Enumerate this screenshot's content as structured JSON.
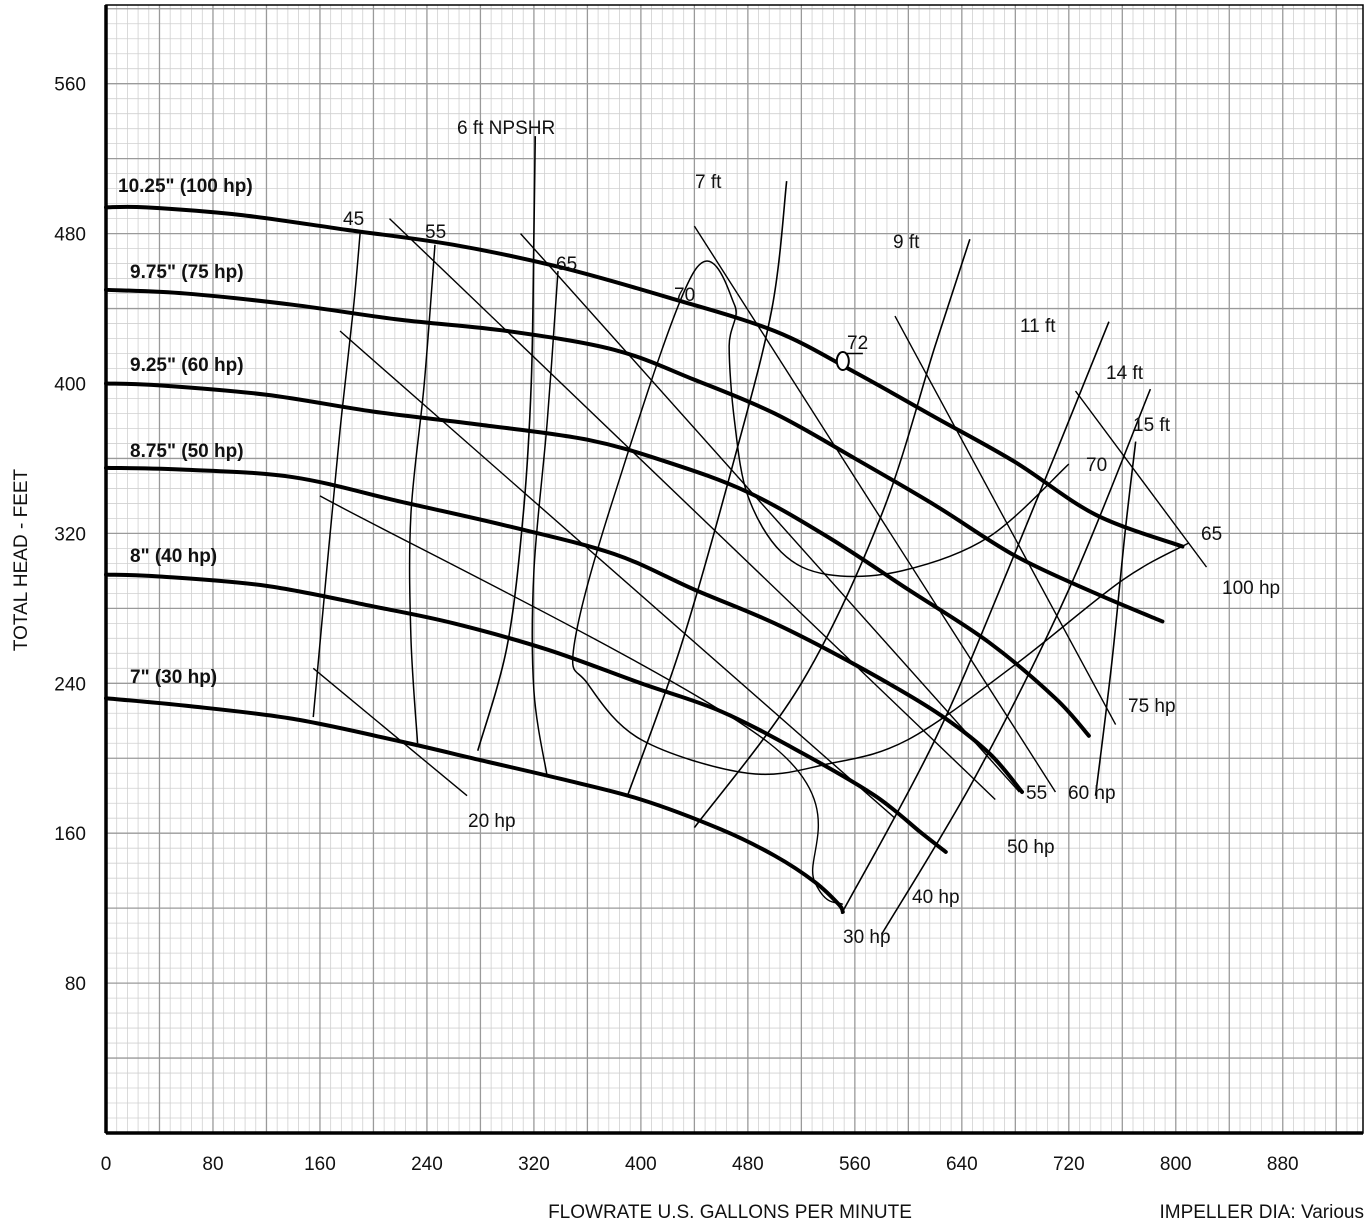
{
  "chart_data": {
    "type": "line",
    "title": "",
    "xlabel": "FLOWRATE U.S. GALLONS PER MINUTE",
    "ylabel": "TOTAL HEAD - FEET",
    "note": "IMPELLER DIA: Various",
    "xlim": [
      0,
      940
    ],
    "ylim": [
      0,
      602
    ],
    "x_ticks": [
      0,
      80,
      160,
      240,
      320,
      400,
      480,
      560,
      640,
      720,
      800,
      880
    ],
    "y_ticks": [
      80,
      160,
      240,
      320,
      400,
      480,
      560
    ],
    "grid": true,
    "colors": {
      "major_grid": "#9a9a9a",
      "minor_grid": "#d0d0d0",
      "ink": "#000000"
    },
    "series": [
      {
        "name": "10.25\" (100 hp)",
        "points": [
          [
            0,
            494
          ],
          [
            30,
            494
          ],
          [
            100,
            490
          ],
          [
            180,
            482
          ],
          [
            260,
            474
          ],
          [
            340,
            462
          ],
          [
            420,
            446
          ],
          [
            500,
            428
          ],
          [
            560,
            406
          ],
          [
            620,
            382
          ],
          [
            680,
            358
          ],
          [
            740,
            330
          ],
          [
            805,
            313
          ]
        ]
      },
      {
        "name": "9.75\" (75 hp)",
        "points": [
          [
            0,
            450
          ],
          [
            60,
            448
          ],
          [
            140,
            442
          ],
          [
            220,
            434
          ],
          [
            300,
            428
          ],
          [
            380,
            418
          ],
          [
            440,
            402
          ],
          [
            500,
            384
          ],
          [
            560,
            360
          ],
          [
            620,
            335
          ],
          [
            680,
            308
          ],
          [
            740,
            288
          ],
          [
            790,
            273
          ]
        ]
      },
      {
        "name": "9.25\" (60 hp)",
        "points": [
          [
            0,
            400
          ],
          [
            40,
            399
          ],
          [
            120,
            394
          ],
          [
            200,
            385
          ],
          [
            280,
            378
          ],
          [
            360,
            370
          ],
          [
            420,
            358
          ],
          [
            480,
            342
          ],
          [
            540,
            318
          ],
          [
            600,
            290
          ],
          [
            660,
            262
          ],
          [
            710,
            232
          ],
          [
            735,
            212
          ]
        ]
      },
      {
        "name": "8.75\" (50 hp)",
        "points": [
          [
            0,
            355
          ],
          [
            60,
            354
          ],
          [
            140,
            350
          ],
          [
            220,
            337
          ],
          [
            300,
            324
          ],
          [
            380,
            309
          ],
          [
            440,
            290
          ],
          [
            500,
            272
          ],
          [
            560,
            250
          ],
          [
            620,
            225
          ],
          [
            660,
            203
          ],
          [
            685,
            182
          ]
        ]
      },
      {
        "name": "8\" (40 hp)",
        "points": [
          [
            0,
            298
          ],
          [
            40,
            297
          ],
          [
            120,
            292
          ],
          [
            200,
            281
          ],
          [
            260,
            272
          ],
          [
            330,
            258
          ],
          [
            400,
            240
          ],
          [
            460,
            225
          ],
          [
            520,
            203
          ],
          [
            575,
            180
          ],
          [
            610,
            160
          ],
          [
            628,
            150
          ]
        ]
      },
      {
        "name": "7\" (30 hp)",
        "points": [
          [
            0,
            232
          ],
          [
            60,
            228
          ],
          [
            140,
            221
          ],
          [
            220,
            209
          ],
          [
            280,
            199
          ],
          [
            340,
            189
          ],
          [
            400,
            178
          ],
          [
            460,
            162
          ],
          [
            500,
            148
          ],
          [
            530,
            134
          ],
          [
            548,
            122
          ],
          [
            551,
            118
          ]
        ]
      }
    ],
    "npshr": [
      {
        "label": "6 ft NPSHR",
        "points": [
          [
            278,
            204
          ],
          [
            300,
            260
          ],
          [
            312,
            330
          ],
          [
            318,
            400
          ],
          [
            320,
            480
          ],
          [
            321,
            532
          ]
        ]
      },
      {
        "label": "7 ft",
        "points": [
          [
            390,
            180
          ],
          [
            430,
            260
          ],
          [
            470,
            360
          ],
          [
            498,
            440
          ],
          [
            509,
            508
          ]
        ]
      },
      {
        "label": "9 ft",
        "points": [
          [
            440,
            163
          ],
          [
            520,
            240
          ],
          [
            580,
            330
          ],
          [
            620,
            420
          ],
          [
            646,
            477
          ]
        ]
      },
      {
        "label": "11 ft",
        "points": [
          [
            550,
            117
          ],
          [
            620,
            210
          ],
          [
            680,
            310
          ],
          [
            750,
            433
          ]
        ]
      },
      {
        "label": "14 ft",
        "points": [
          [
            580,
            106
          ],
          [
            650,
            190
          ],
          [
            720,
            290
          ],
          [
            781,
            397
          ]
        ]
      },
      {
        "label": "15 ft",
        "points": [
          [
            740,
            180
          ],
          [
            752,
            250
          ],
          [
            762,
            320
          ],
          [
            770,
            369
          ]
        ]
      }
    ],
    "power": [
      {
        "label": "20 hp",
        "points": [
          [
            155,
            248
          ],
          [
            270,
            180
          ]
        ]
      },
      {
        "label": "30 hp",
        "points": [
          [
            160,
            340
          ],
          [
            496,
            208
          ],
          [
            530,
            134
          ],
          [
            551,
            122
          ]
        ]
      },
      {
        "label": "40 hp",
        "points": [
          [
            175,
            428
          ],
          [
            590,
            168
          ]
        ]
      },
      {
        "label": "50 hp",
        "points": [
          [
            212,
            488
          ],
          [
            665,
            178
          ]
        ]
      },
      {
        "label": "55",
        "points": [
          [
            310,
            480
          ],
          [
            683,
            182
          ]
        ]
      },
      {
        "label": "60 hp",
        "points": [
          [
            440,
            484
          ],
          [
            710,
            182
          ]
        ]
      },
      {
        "label": "75 hp",
        "points": [
          [
            590,
            436
          ],
          [
            755,
            218
          ]
        ]
      },
      {
        "label": "100 hp",
        "points": [
          [
            725,
            396
          ],
          [
            823,
            302
          ]
        ]
      }
    ],
    "efficiency": [
      {
        "label": "45",
        "points": [
          [
            155,
            222
          ],
          [
            165,
            300
          ],
          [
            175,
            375
          ],
          [
            185,
            440
          ],
          [
            190,
            480
          ]
        ]
      },
      {
        "label": "55",
        "points": [
          [
            233,
            208
          ],
          [
            228,
            265
          ],
          [
            228,
            330
          ],
          [
            238,
            400
          ],
          [
            246,
            474
          ]
        ]
      },
      {
        "label": "65",
        "points": [
          [
            330,
            190
          ],
          [
            320,
            236
          ],
          [
            320,
            300
          ],
          [
            330,
            380
          ],
          [
            338,
            460
          ]
        ]
      },
      {
        "label": "70",
        "points": [
          [
            720,
            357
          ],
          [
            660,
            318
          ],
          [
            595,
            300
          ],
          [
            540,
            298
          ],
          [
            505,
            310
          ],
          [
            480,
            340
          ],
          [
            470,
            380
          ],
          [
            466,
            420
          ],
          [
            470,
            442
          ],
          [
            440,
            460
          ],
          [
            380,
            340
          ],
          [
            350,
            260
          ],
          [
            360,
            240
          ],
          [
            400,
            210
          ],
          [
            480,
            192
          ],
          [
            540,
            197
          ],
          [
            600,
            210
          ],
          [
            680,
            250
          ],
          [
            760,
            295
          ],
          [
            810,
            315
          ]
        ]
      },
      {
        "label": "72",
        "points": [
          [
            566,
            416
          ],
          [
            548,
            416
          ]
        ]
      }
    ],
    "efficiency_labels": [
      "45",
      "55",
      "65",
      "70",
      "72",
      "70",
      "65"
    ],
    "bep_marker": [
      551,
      412
    ],
    "annotations": [
      "6 ft NPSHR",
      "7 ft",
      "9 ft",
      "11 ft",
      "14 ft",
      "15 ft",
      "20 hp",
      "30 hp",
      "40 hp",
      "50 hp",
      "55",
      "60 hp",
      "75 hp",
      "100 hp"
    ]
  }
}
